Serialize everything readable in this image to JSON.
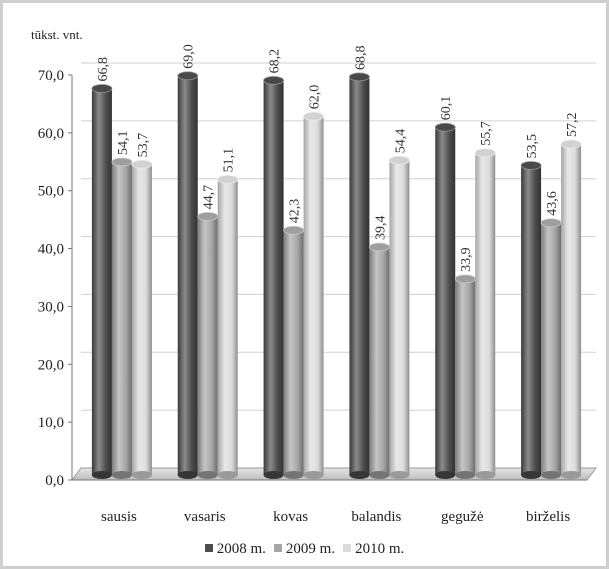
{
  "chart_data": {
    "type": "bar",
    "unit_label": "tūkst. vnt.",
    "categories": [
      "sausis",
      "vasaris",
      "kovas",
      "balandis",
      "gegužė",
      "birželis"
    ],
    "series": [
      {
        "name": "2008 m.",
        "color": "#4d4d4d",
        "values": [
          66.8,
          69.0,
          68.2,
          68.8,
          60.1,
          53.5
        ]
      },
      {
        "name": "2009 m.",
        "color": "#a6a6a6",
        "values": [
          54.1,
          44.7,
          42.3,
          39.4,
          33.9,
          43.6
        ]
      },
      {
        "name": "2010 m.",
        "color": "#dcdcdc",
        "values": [
          53.7,
          51.1,
          62.0,
          54.4,
          55.7,
          57.2
        ]
      }
    ],
    "data_labels": [
      [
        "66,8",
        "69,0",
        "68,2",
        "68,8",
        "60,1",
        "53,5"
      ],
      [
        "54,1",
        "44,7",
        "42,3",
        "39,4",
        "33,9",
        "43,6"
      ],
      [
        "53,7",
        "51,1",
        "62,0",
        "54,4",
        "55,7",
        "57,2"
      ]
    ],
    "ylim": [
      0,
      70
    ],
    "yticks": [
      "0,0",
      "10,0",
      "20,0",
      "30,0",
      "40,0",
      "50,0",
      "60,0",
      "70,0"
    ],
    "legend_position": "bottom",
    "style": "3d-cylinder"
  }
}
